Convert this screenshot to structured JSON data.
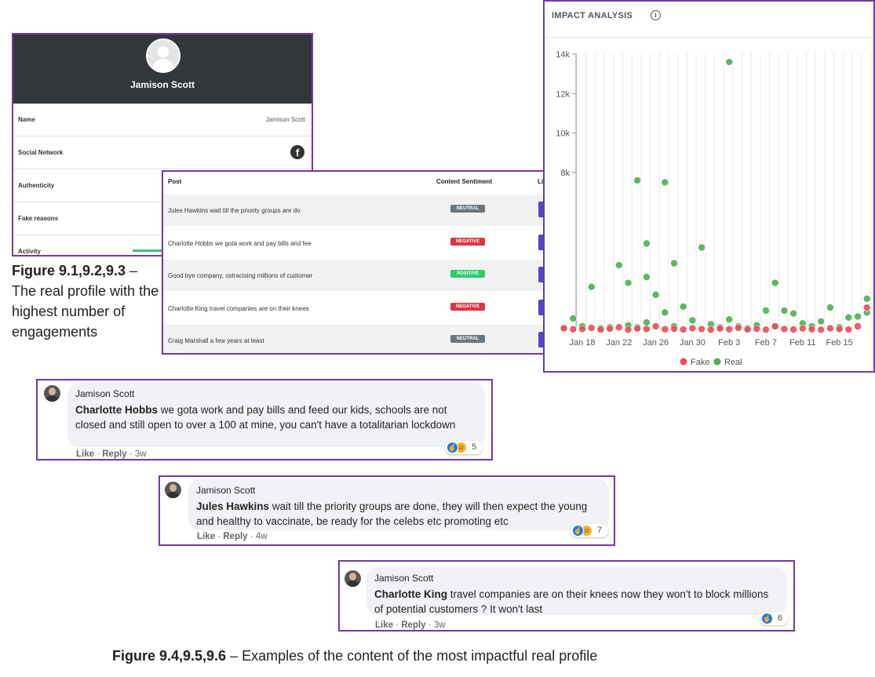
{
  "profile": {
    "name": "Jamison Scott",
    "rows": [
      {
        "label": "Name",
        "value": "Jamison Scott"
      },
      {
        "label": "Social Network",
        "icon": "facebook-icon"
      },
      {
        "label": "Authenticity"
      },
      {
        "label": "Fake reasons"
      },
      {
        "label": "Activity"
      }
    ]
  },
  "caption1": {
    "bold": "Figure 9.1,9.2,9.3",
    "text": " – The real profile with the highest number of engagements"
  },
  "posts": {
    "headers": {
      "post": "Post",
      "sentiment": "Content Sentiment",
      "link": "Link"
    },
    "rows": [
      {
        "text": "Jules Hawkins wait till the priority groups are do",
        "sentiment": "NEUTRAL",
        "link": "Link"
      },
      {
        "text": "Charlotte Hobbs we gota work and pay bills and fee",
        "sentiment": "NEGATIVE",
        "link": "Link"
      },
      {
        "text": "Good bye company, ostracising millions of customer",
        "sentiment": "POSITIVE",
        "link": "Link"
      },
      {
        "text": "Charlotte King travel companies are on their knees",
        "sentiment": "NEGATIVE",
        "link": "Link"
      },
      {
        "text": "Craig Marshall a few years at least",
        "sentiment": "NEUTRAL",
        "link": "Link"
      }
    ],
    "sentiment_colors": {
      "NEUTRAL": "#6c757d",
      "NEGATIVE": "#dc3545",
      "POSITIVE": "#2ecc71"
    }
  },
  "chart_header": {
    "title": "IMPACT ANALYSIS",
    "info_icon": "info-icon"
  },
  "chart_data": {
    "type": "scatter",
    "title": "IMPACT ANALYSIS",
    "x_ticks": [
      "Jan 18",
      "Jan 22",
      "Jan 26",
      "Jan 30",
      "Feb 3",
      "Feb 7",
      "Feb 11",
      "Feb 15"
    ],
    "y_ticks": [
      "14k",
      "12k",
      "10k",
      "8k"
    ],
    "ylim": [
      0,
      14000
    ],
    "grid": "vertical",
    "legend_position": "bottom",
    "series": [
      {
        "name": "Fake",
        "color": "#ea4c57",
        "points": [
          [
            "Jan 16",
            100
          ],
          [
            "Jan 17",
            50
          ],
          [
            "Jan 18",
            60
          ],
          [
            "Jan 19",
            120
          ],
          [
            "Jan 20",
            40
          ],
          [
            "Jan 21",
            80
          ],
          [
            "Jan 22",
            150
          ],
          [
            "Jan 23",
            30
          ],
          [
            "Jan 24",
            90
          ],
          [
            "Jan 25",
            60
          ],
          [
            "Jan 26",
            200
          ],
          [
            "Jan 27",
            50
          ],
          [
            "Jan 28",
            70
          ],
          [
            "Jan 29",
            40
          ],
          [
            "Jan 30",
            100
          ],
          [
            "Jan 31",
            60
          ],
          [
            "Feb 1",
            30
          ],
          [
            "Feb 2",
            90
          ],
          [
            "Feb 3",
            50
          ],
          [
            "Feb 4",
            120
          ],
          [
            "Feb 5",
            40
          ],
          [
            "Feb 6",
            70
          ],
          [
            "Feb 7",
            30
          ],
          [
            "Feb 8",
            200
          ],
          [
            "Feb 9",
            60
          ],
          [
            "Feb 10",
            40
          ],
          [
            "Feb 11",
            90
          ],
          [
            "Feb 12",
            50
          ],
          [
            "Feb 13",
            30
          ],
          [
            "Feb 14",
            100
          ],
          [
            "Feb 15",
            60
          ],
          [
            "Feb 16",
            40
          ],
          [
            "Feb 17",
            200
          ],
          [
            "Feb 18",
            1150
          ]
        ]
      },
      {
        "name": "Real",
        "color": "#4caf50",
        "points": [
          [
            "Jan 16",
            100
          ],
          [
            "Jan 17",
            600
          ],
          [
            "Jan 18",
            200
          ],
          [
            "Jan 19",
            2200
          ],
          [
            "Jan 20",
            100
          ],
          [
            "Jan 21",
            150
          ],
          [
            "Jan 22",
            3300
          ],
          [
            "Jan 23",
            250
          ],
          [
            "Jan 23",
            2400
          ],
          [
            "Jan 24",
            7600
          ],
          [
            "Jan 24",
            150
          ],
          [
            "Jan 25",
            2700
          ],
          [
            "Jan 25",
            4400
          ],
          [
            "Jan 25",
            400
          ],
          [
            "Jan 26",
            1800
          ],
          [
            "Jan 27",
            7500
          ],
          [
            "Jan 27",
            900
          ],
          [
            "Jan 28",
            200
          ],
          [
            "Jan 28",
            3400
          ],
          [
            "Jan 29",
            1200
          ],
          [
            "Jan 30",
            500
          ],
          [
            "Jan 31",
            4200
          ],
          [
            "Feb 1",
            300
          ],
          [
            "Feb 2",
            150
          ],
          [
            "Feb 3",
            550
          ],
          [
            "Feb 3",
            13600
          ],
          [
            "Feb 4",
            200
          ],
          [
            "Feb 5",
            100
          ],
          [
            "Feb 6",
            250
          ],
          [
            "Feb 7",
            1000
          ],
          [
            "Feb 8",
            2400
          ],
          [
            "Feb 8",
            200
          ],
          [
            "Feb 9",
            1000
          ],
          [
            "Feb 10",
            850
          ],
          [
            "Feb 11",
            350
          ],
          [
            "Feb 12",
            200
          ],
          [
            "Feb 13",
            450
          ],
          [
            "Feb 14",
            1150
          ],
          [
            "Feb 15",
            150
          ],
          [
            "Feb 16",
            650
          ],
          [
            "Feb 17",
            700
          ],
          [
            "Feb 18",
            900
          ],
          [
            "Feb 18",
            1600
          ]
        ]
      }
    ]
  },
  "comments": [
    {
      "author": "Jamison Scott",
      "mention": "Charlotte Hobbs",
      "text": " we gota work and pay bills and feed our kids, schools are not closed and still open to over a 100 at mine, you can't have a totalitarian lockdown",
      "reactions": {
        "icons": [
          "like-icon",
          "haha-icon"
        ],
        "count": "5"
      },
      "actions": {
        "like": "Like",
        "reply": "Reply",
        "time": "3w"
      }
    },
    {
      "author": "Jamison Scott",
      "mention": "Jules Hawkins",
      "text": " wait till the priority groups are done, they will then expect the young and healthy to vaccinate, be ready for the celebs etc promoting etc",
      "reactions": {
        "icons": [
          "like-icon",
          "haha-icon"
        ],
        "count": "7"
      },
      "actions": {
        "like": "Like",
        "reply": "Reply",
        "time": "4w"
      }
    },
    {
      "author": "Jamison Scott",
      "mention": "Charlotte King",
      "text": " travel companies are on their knees now they won't to block millions of potential customers ? It won't last",
      "reactions": {
        "icons": [
          "like-icon"
        ],
        "count": "6"
      },
      "actions": {
        "like": "Like",
        "reply": "Reply",
        "time": "3w"
      }
    }
  ],
  "caption2": {
    "bold": "Figure 9.4,9.5,9.6",
    "text": " – Examples of the content of the most impactful real profile"
  }
}
